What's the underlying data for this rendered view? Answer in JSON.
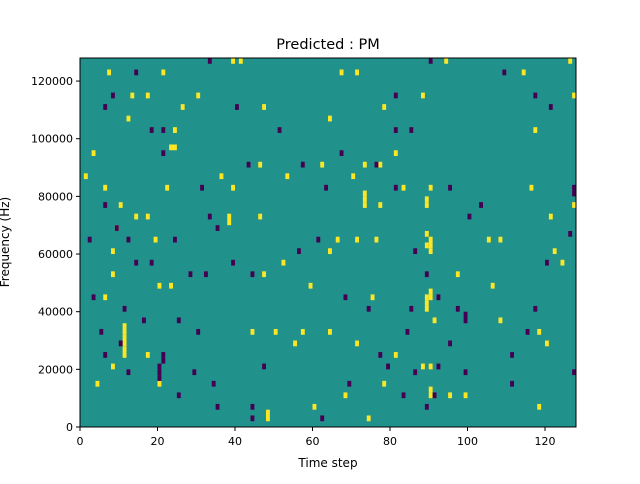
{
  "chart_data": {
    "type": "heatmap",
    "title": "Predicted : PM",
    "xlabel": "Time step",
    "ylabel": "Frequency (Hz)",
    "xlim": [
      0,
      128
    ],
    "ylim": [
      0,
      128000
    ],
    "xticks": [
      "0",
      "20",
      "40",
      "60",
      "80",
      "100",
      "120"
    ],
    "yticks": [
      "0",
      "20000",
      "40000",
      "60000",
      "80000",
      "100000",
      "120000"
    ],
    "freq_bin_hz": 2000,
    "default_value": 0,
    "colormap": {
      "-1": "#440154",
      "0": "#21918c",
      "1": "#fde725"
    },
    "cells_note": "[time_step, frequency_bin_index]",
    "cells": {
      "-1": [
        [
          14,
          61
        ],
        [
          33,
          63
        ],
        [
          90,
          63
        ],
        [
          109,
          61
        ],
        [
          8,
          57
        ],
        [
          81,
          57
        ],
        [
          117,
          57
        ],
        [
          6,
          55
        ],
        [
          40,
          55
        ],
        [
          121,
          55
        ],
        [
          21,
          51
        ],
        [
          51,
          51
        ],
        [
          81,
          51
        ],
        [
          85,
          51
        ],
        [
          18,
          51
        ],
        [
          21,
          47
        ],
        [
          43,
          45
        ],
        [
          57,
          45
        ],
        [
          67,
          47
        ],
        [
          76,
          45
        ],
        [
          31,
          41
        ],
        [
          63,
          41
        ],
        [
          81,
          41
        ],
        [
          95,
          41
        ],
        [
          127,
          41
        ],
        [
          6,
          38
        ],
        [
          103,
          38
        ],
        [
          33,
          36
        ],
        [
          100,
          36
        ],
        [
          9,
          34
        ],
        [
          35,
          34
        ],
        [
          61,
          32
        ],
        [
          2,
          32
        ],
        [
          12,
          32
        ],
        [
          24,
          32
        ],
        [
          56,
          30
        ],
        [
          86,
          30
        ],
        [
          14,
          28
        ],
        [
          18,
          28
        ],
        [
          39,
          28
        ],
        [
          120,
          28
        ],
        [
          28,
          26
        ],
        [
          32,
          26
        ],
        [
          44,
          26
        ],
        [
          89,
          26
        ],
        [
          3,
          22
        ],
        [
          68,
          22
        ],
        [
          92,
          22
        ],
        [
          11,
          20
        ],
        [
          74,
          20
        ],
        [
          85,
          20
        ],
        [
          97,
          20
        ],
        [
          117,
          20
        ],
        [
          16,
          18
        ],
        [
          25,
          18
        ],
        [
          99,
          18
        ],
        [
          5,
          16
        ],
        [
          30,
          16
        ],
        [
          84,
          16
        ],
        [
          115,
          16
        ],
        [
          10,
          14
        ],
        [
          95,
          14
        ],
        [
          6,
          12
        ],
        [
          21,
          12
        ],
        [
          77,
          12
        ],
        [
          111,
          12
        ],
        [
          20,
          10
        ],
        [
          47,
          10
        ],
        [
          79,
          10
        ],
        [
          92,
          10
        ],
        [
          12,
          9
        ],
        [
          20,
          9
        ],
        [
          29,
          9
        ],
        [
          86,
          9
        ],
        [
          99,
          9
        ],
        [
          127,
          9
        ],
        [
          34,
          7
        ],
        [
          69,
          7
        ],
        [
          111,
          7
        ],
        [
          25,
          5
        ],
        [
          83,
          5
        ],
        [
          91,
          5
        ],
        [
          35,
          3
        ],
        [
          44,
          3
        ],
        [
          89,
          3
        ],
        [
          44,
          1
        ],
        [
          62,
          1
        ],
        [
          21,
          11
        ],
        [
          20,
          8
        ],
        [
          127,
          40
        ],
        [
          126,
          33
        ],
        [
          99,
          19
        ]
      ],
      "1": [
        [
          39,
          63
        ],
        [
          41,
          63
        ],
        [
          94,
          63
        ],
        [
          126,
          63
        ],
        [
          7,
          61
        ],
        [
          21,
          61
        ],
        [
          67,
          61
        ],
        [
          71,
          61
        ],
        [
          114,
          61
        ],
        [
          13,
          57
        ],
        [
          30,
          57
        ],
        [
          88,
          57
        ],
        [
          17,
          57
        ],
        [
          127,
          57
        ],
        [
          26,
          55
        ],
        [
          47,
          55
        ],
        [
          78,
          55
        ],
        [
          12,
          53
        ],
        [
          64,
          53
        ],
        [
          24,
          51
        ],
        [
          117,
          51
        ],
        [
          24,
          48
        ],
        [
          23,
          48
        ],
        [
          3,
          47
        ],
        [
          81,
          47
        ],
        [
          46,
          45
        ],
        [
          62,
          45
        ],
        [
          73,
          45
        ],
        [
          77,
          45
        ],
        [
          1,
          43
        ],
        [
          36,
          43
        ],
        [
          53,
          43
        ],
        [
          70,
          43
        ],
        [
          73,
          39
        ],
        [
          73,
          38
        ],
        [
          73,
          40
        ],
        [
          6,
          41
        ],
        [
          22,
          41
        ],
        [
          39,
          41
        ],
        [
          83,
          41
        ],
        [
          90,
          41
        ],
        [
          116,
          41
        ],
        [
          89,
          39
        ],
        [
          89,
          38
        ],
        [
          10,
          38
        ],
        [
          77,
          38
        ],
        [
          127,
          38
        ],
        [
          14,
          36
        ],
        [
          17,
          36
        ],
        [
          46,
          36
        ],
        [
          121,
          36
        ],
        [
          38,
          35
        ],
        [
          38,
          36
        ],
        [
          9,
          34
        ],
        [
          89,
          31
        ],
        [
          90,
          30
        ],
        [
          90,
          31
        ],
        [
          90,
          32
        ],
        [
          89,
          33
        ],
        [
          19,
          32
        ],
        [
          66,
          32
        ],
        [
          71,
          32
        ],
        [
          76,
          32
        ],
        [
          105,
          32
        ],
        [
          108,
          32
        ],
        [
          122,
          30
        ],
        [
          64,
          30
        ],
        [
          8,
          30
        ],
        [
          124,
          28
        ],
        [
          8,
          26
        ],
        [
          47,
          26
        ],
        [
          52,
          28
        ],
        [
          97,
          26
        ],
        [
          20,
          24
        ],
        [
          23,
          24
        ],
        [
          59,
          24
        ],
        [
          106,
          24
        ],
        [
          6,
          22
        ],
        [
          75,
          22
        ],
        [
          89,
          22
        ],
        [
          90,
          22
        ],
        [
          89,
          21
        ],
        [
          89,
          20
        ],
        [
          90,
          23
        ],
        [
          11,
          16
        ],
        [
          11,
          17
        ],
        [
          11,
          15
        ],
        [
          11,
          14
        ],
        [
          11,
          13
        ],
        [
          91,
          18
        ],
        [
          108,
          18
        ],
        [
          44,
          16
        ],
        [
          50,
          16
        ],
        [
          57,
          16
        ],
        [
          64,
          16
        ],
        [
          118,
          16
        ],
        [
          55,
          14
        ],
        [
          71,
          14
        ],
        [
          120,
          14
        ],
        [
          11,
          12
        ],
        [
          17,
          12
        ],
        [
          81,
          12
        ],
        [
          8,
          10
        ],
        [
          88,
          10
        ],
        [
          90,
          10
        ],
        [
          20,
          7
        ],
        [
          4,
          7
        ],
        [
          78,
          7
        ],
        [
          90,
          6
        ],
        [
          90,
          5
        ],
        [
          95,
          5
        ],
        [
          99,
          5
        ],
        [
          68,
          5
        ],
        [
          118,
          3
        ],
        [
          60,
          3
        ],
        [
          48,
          2
        ],
        [
          48,
          1
        ],
        [
          74,
          1
        ]
      ]
    }
  }
}
